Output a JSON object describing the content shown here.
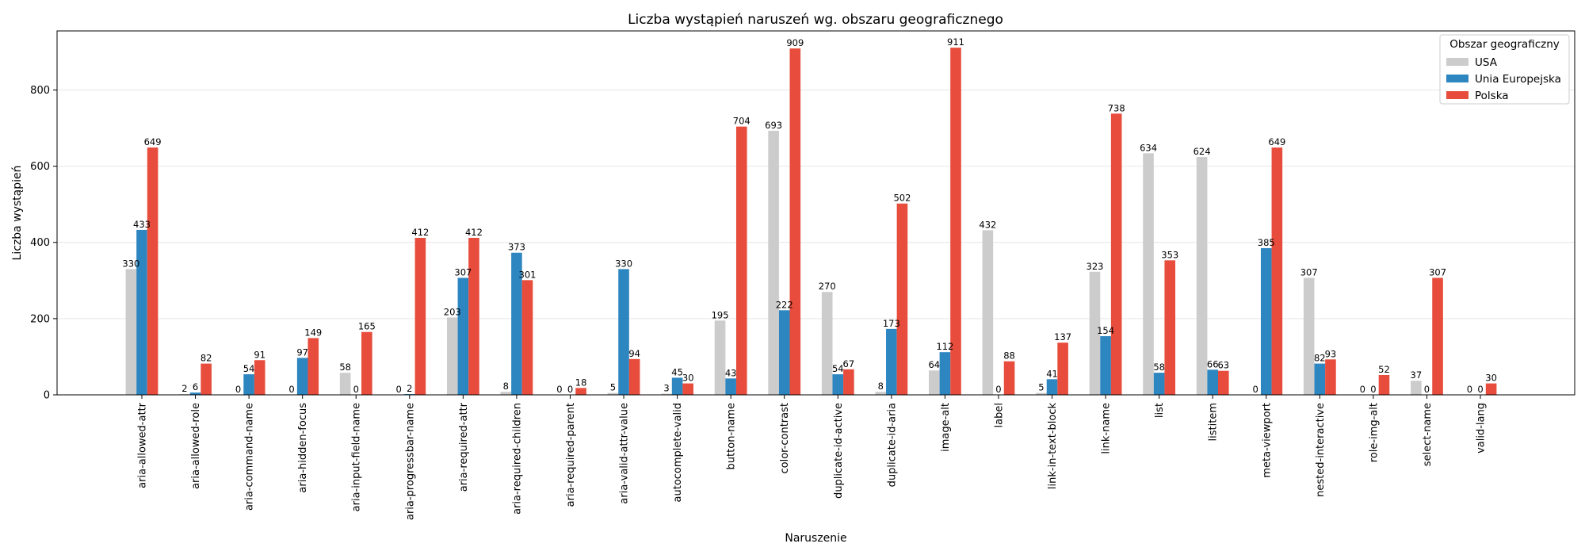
{
  "chart_data": {
    "type": "bar",
    "title": "Liczba wystąpień naruszeń wg. obszaru geograficznego",
    "xlabel": "Naruszenie",
    "ylabel": "Liczba wystąpień",
    "ylim": [
      0,
      955
    ],
    "yticks": [
      0,
      200,
      400,
      600,
      800
    ],
    "grid": "horizontal",
    "legend": {
      "title": "Obszar geograficzny",
      "placement": "top-right"
    },
    "categories": [
      "aria-allowed-attr",
      "aria-allowed-role",
      "aria-command-name",
      "aria-hidden-focus",
      "aria-input-field-name",
      "aria-progressbar-name",
      "aria-required-attr",
      "aria-required-children",
      "aria-required-parent",
      "aria-valid-attr-value",
      "autocomplete-valid",
      "button-name",
      "color-contrast",
      "duplicate-id-active",
      "duplicate-id-aria",
      "image-alt",
      "label",
      "link-in-text-block",
      "link-name",
      "list",
      "listitem",
      "meta-viewport",
      "nested-interactive",
      "role-img-alt",
      "select-name",
      "valid-lang"
    ],
    "series": [
      {
        "name": "USA",
        "color": "#cccccc",
        "values": [
          330,
          2,
          0,
          0,
          58,
          0,
          203,
          8,
          0,
          5,
          3,
          195,
          693,
          270,
          8,
          64,
          432,
          5,
          323,
          634,
          624,
          0,
          307,
          0,
          37,
          0
        ]
      },
      {
        "name": "Unia Europejska",
        "color": "#2e86c1",
        "values": [
          433,
          6,
          54,
          97,
          0,
          2,
          307,
          373,
          0,
          330,
          45,
          43,
          222,
          54,
          173,
          112,
          0,
          41,
          154,
          58,
          66,
          385,
          82,
          0,
          0,
          0
        ]
      },
      {
        "name": "Polska",
        "color": "#e74c3c",
        "values": [
          649,
          82,
          91,
          149,
          165,
          412,
          412,
          301,
          18,
          94,
          30,
          704,
          909,
          67,
          502,
          911,
          88,
          137,
          738,
          353,
          63,
          649,
          93,
          52,
          307,
          30
        ]
      }
    ]
  }
}
